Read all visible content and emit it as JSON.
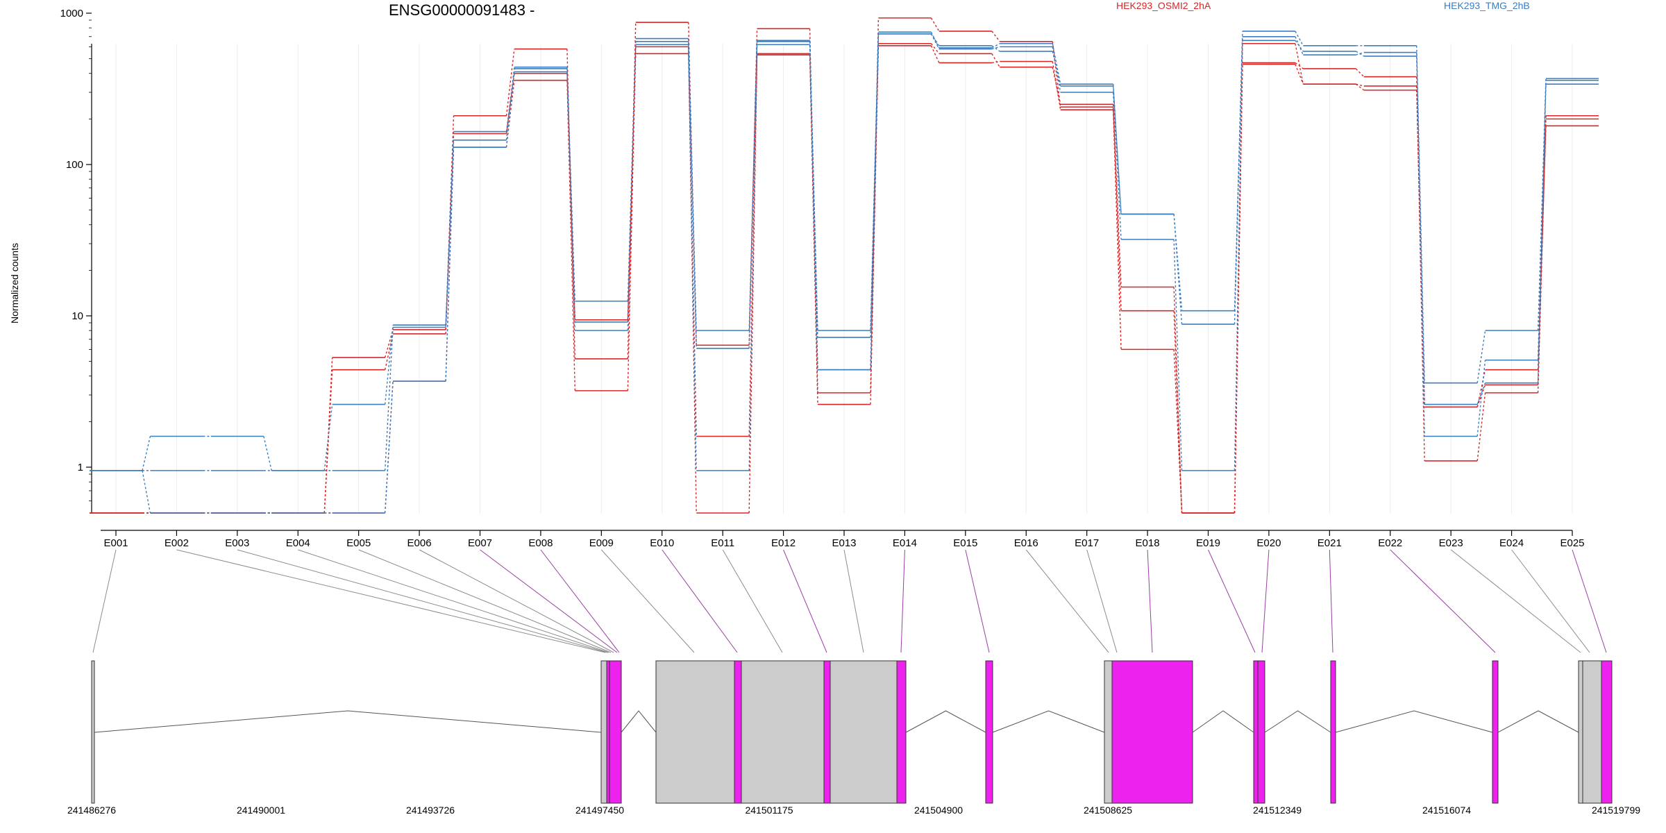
{
  "chart_data": {
    "type": "line",
    "title": "ENSG00000091483 -",
    "ylabel": "Normalized counts",
    "xlabel": "",
    "y_scale": "log",
    "y_ticks": [
      "1",
      "10",
      "100",
      "1000"
    ],
    "grid": "vertical lines only, at exon centers",
    "legend_position": "top",
    "legend": [
      {
        "label": "HEK293_OSMI2_2hA",
        "color": "#d62728"
      },
      {
        "label": "HEK293_TMG_2hB",
        "color": "#3b7dbf"
      }
    ],
    "categories": [
      "E001",
      "E002",
      "E003",
      "E004",
      "E005",
      "E006",
      "E007",
      "E008",
      "E009",
      "E010",
      "E011",
      "E012",
      "E013",
      "E014",
      "E015",
      "E016",
      "E017",
      "E018",
      "E019",
      "E020",
      "E021",
      "E022",
      "E023",
      "E024",
      "E025"
    ],
    "series": [
      {
        "group": "HEK293_OSMI2_2hA",
        "color": "#d62728",
        "values": [
          0.5,
          0.5,
          0.5,
          0.5,
          5.3,
          8.1,
          210,
          580,
          5.2,
          870,
          6.4,
          790,
          3.1,
          930,
          760,
          650,
          240,
          15.5,
          0.5,
          470,
          430,
          380,
          1.1,
          3.1,
          210
        ]
      },
      {
        "group": "HEK293_OSMI2_2hA",
        "color": "#d62728",
        "values": [
          0.5,
          0.5,
          0.5,
          0.5,
          4.4,
          7.6,
          160,
          400,
          9.4,
          540,
          1.6,
          530,
          2.6,
          630,
          540,
          440,
          250,
          10.8,
          0.5,
          460,
          340,
          310,
          2.5,
          4.4,
          180
        ]
      },
      {
        "group": "HEK293_OSMI2_2hA",
        "color": "#d62728",
        "values": [
          0.5,
          0.5,
          0.5,
          0.5,
          0.5,
          3.7,
          130,
          360,
          3.2,
          600,
          0.5,
          540,
          4.4,
          610,
          470,
          480,
          230,
          6.0,
          0.5,
          630,
          340,
          330,
          2.5,
          3.5,
          200
        ]
      },
      {
        "group": "HEK293_TMG_2hB",
        "color": "#3b7dbf",
        "values": [
          0.95,
          1.6,
          1.6,
          0.95,
          2.6,
          8.7,
          165,
          430,
          12.5,
          680,
          8.0,
          650,
          8.0,
          750,
          590,
          630,
          340,
          47,
          10.8,
          760,
          610,
          610,
          3.6,
          8.0,
          360
        ]
      },
      {
        "group": "HEK293_TMG_2hB",
        "color": "#3b7dbf",
        "values": [
          0.95,
          0.95,
          0.95,
          0.95,
          0.95,
          8.4,
          145,
          440,
          8.0,
          650,
          0.95,
          660,
          7.2,
          730,
          610,
          560,
          330,
          47,
          8.8,
          700,
          530,
          550,
          1.6,
          5.1,
          370
        ]
      },
      {
        "group": "HEK293_TMG_2hB",
        "color": "#3b7dbf",
        "values": [
          0.95,
          0.5,
          0.5,
          0.5,
          0.5,
          3.7,
          130,
          410,
          9.1,
          620,
          6.1,
          620,
          4.4,
          730,
          580,
          600,
          300,
          32,
          0.95,
          660,
          560,
          520,
          2.6,
          3.6,
          340
        ]
      }
    ],
    "coordinates": [
      "241486276",
      "241490001",
      "241493726",
      "241497450",
      "241501175",
      "241504900",
      "241508625",
      "241512349",
      "241516074",
      "241519799"
    ],
    "exon_highlight_color": "#ee22ee",
    "exon_default_color": "#cccccc",
    "highlighted_exons": [
      "E007",
      "E008",
      "E010",
      "E012",
      "E014",
      "E015",
      "E018",
      "E019",
      "E020",
      "E021",
      "E022",
      "E025"
    ]
  }
}
